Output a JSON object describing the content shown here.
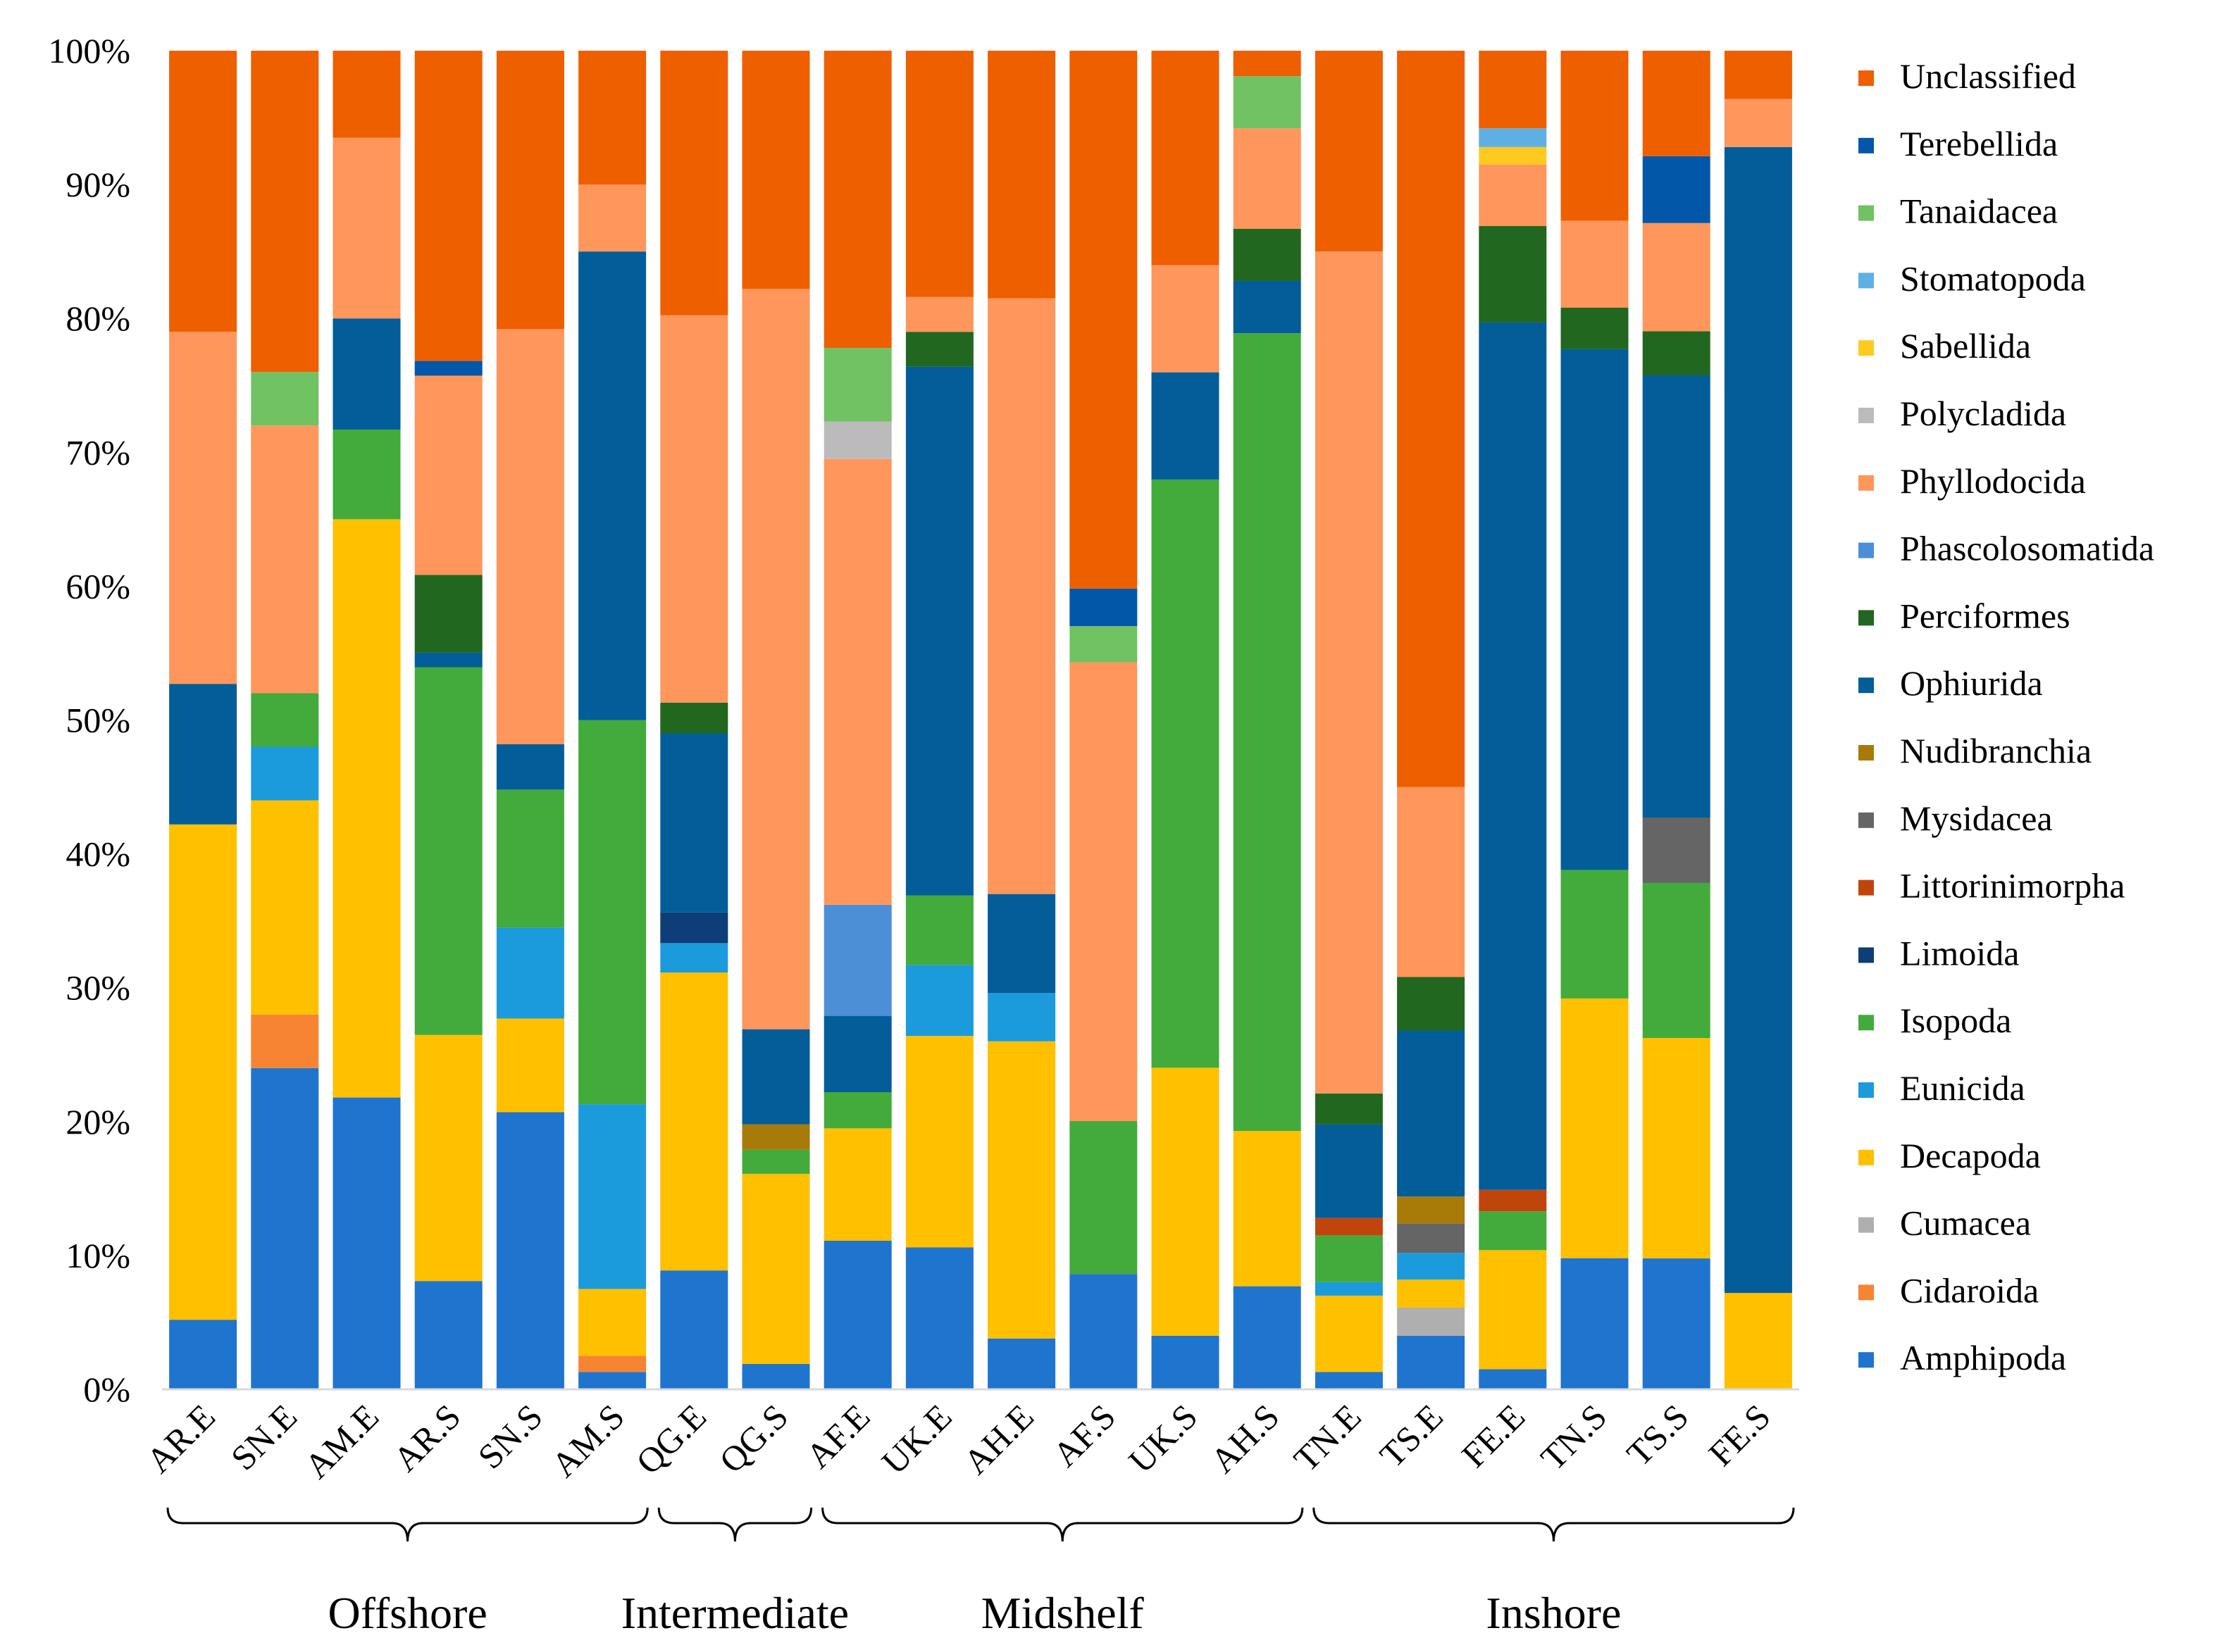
{
  "chart_data": {
    "type": "stacked-bar-100",
    "ylim": [
      0,
      100
    ],
    "yticks": [
      "0%",
      "10%",
      "20%",
      "30%",
      "40%",
      "50%",
      "60%",
      "70%",
      "80%",
      "90%",
      "100%"
    ],
    "categories": [
      "AR.E",
      "SN.E",
      "AM.E",
      "AR.S",
      "SN.S",
      "AM.S",
      "QG.E",
      "QG.S",
      "AF.E",
      "UK.E",
      "AH.E",
      "AF.S",
      "UK.S",
      "AH.S",
      "TN.E",
      "TS.E",
      "FE.E",
      "TN.S",
      "TS.S",
      "FE.S"
    ],
    "groups": [
      {
        "label": "Offshore",
        "from": 0,
        "to": 5
      },
      {
        "label": "Intermediate",
        "from": 6,
        "to": 7
      },
      {
        "label": "Midshelf",
        "from": 8,
        "to": 13
      },
      {
        "label": "Inshore",
        "from": 14,
        "to": 19
      }
    ],
    "legend_position": "right",
    "series": [
      {
        "name": "Amphipoda",
        "color": "#1F74CE",
        "values": [
          5.2,
          24,
          21.8,
          8.1,
          20.7,
          1.3,
          8.9,
          1.9,
          11.1,
          10.6,
          3.8,
          8.6,
          4,
          7.7,
          1.3,
          4,
          1.5,
          9.8,
          9.8,
          0
        ]
      },
      {
        "name": "Cidaroida",
        "color": "#F78433",
        "values": [
          0,
          4,
          0,
          0,
          0,
          1.2,
          0,
          0,
          0,
          0,
          0,
          0,
          0,
          0,
          0,
          0,
          0,
          0,
          0,
          0
        ]
      },
      {
        "name": "Cumacea",
        "color": "#AFAFAF",
        "values": [
          0,
          0,
          0,
          0,
          0,
          0,
          0,
          0,
          0,
          0,
          0,
          0,
          0,
          0,
          0,
          2.1,
          0,
          0,
          0,
          0
        ]
      },
      {
        "name": "Decapoda",
        "color": "#FFC000",
        "values": [
          37,
          16,
          43.2,
          18.4,
          7,
          5,
          22.3,
          14.2,
          8.4,
          15.8,
          22.2,
          0,
          20,
          11.6,
          5.7,
          2.1,
          8.9,
          19.4,
          16.5,
          7.2
        ]
      },
      {
        "name": "Eunicida",
        "color": "#1C9BDC",
        "values": [
          0,
          4,
          0,
          0,
          6.8,
          13.8,
          2.2,
          0,
          0,
          5.3,
          3.6,
          0,
          0,
          0,
          1,
          2,
          0,
          0,
          0,
          0
        ]
      },
      {
        "name": "Isopoda",
        "color": "#42AB3C",
        "values": [
          0,
          4,
          6.7,
          27.5,
          10.3,
          28.7,
          0,
          1.8,
          2.7,
          5.2,
          0,
          11.4,
          43.9,
          59.6,
          3.5,
          0,
          2.9,
          9.6,
          11.6,
          0
        ]
      },
      {
        "name": "Limoida",
        "color": "#0D3E78",
        "values": [
          0,
          0,
          0,
          0,
          0,
          0,
          2.3,
          0,
          0,
          0,
          0,
          0,
          0,
          0,
          0,
          0,
          0,
          0,
          0,
          0
        ]
      },
      {
        "name": "Littorinimorpha",
        "color": "#C0450C",
        "values": [
          0,
          0,
          0,
          0,
          0,
          0,
          0,
          0,
          0,
          0,
          0,
          0,
          0,
          0,
          1.3,
          0,
          1.6,
          0,
          0,
          0
        ]
      },
      {
        "name": "Mysidacea",
        "color": "#656565",
        "values": [
          0,
          0,
          0,
          0,
          0,
          0,
          0,
          0,
          0,
          0,
          0,
          0,
          0,
          0,
          0,
          2.2,
          0,
          0,
          4.9,
          0
        ]
      },
      {
        "name": "Nudibranchia",
        "color": "#A87A08",
        "values": [
          0,
          0,
          0,
          0,
          0,
          0,
          0,
          1.9,
          0,
          0,
          0,
          0,
          0,
          0,
          0,
          2,
          0,
          0,
          0,
          0
        ]
      },
      {
        "name": "Ophiurida",
        "color": "#025D99",
        "values": [
          10.5,
          0,
          8.3,
          1.1,
          3.4,
          35,
          13.4,
          7.1,
          5.7,
          39.5,
          7.4,
          0,
          8,
          3.9,
          7,
          12.4,
          64.8,
          38.9,
          33.1,
          85.6
        ]
      },
      {
        "name": "Perciformes",
        "color": "#21671F",
        "values": [
          0,
          0,
          0,
          5.8,
          0,
          0,
          2.3,
          0,
          0,
          2.6,
          0,
          0,
          0,
          3.9,
          2.3,
          4,
          7.2,
          3.1,
          3.3,
          0
        ]
      },
      {
        "name": "Phascolosomatida",
        "color": "#4D8FD6",
        "values": [
          0,
          0,
          0,
          0,
          0,
          0,
          0,
          0,
          8.3,
          0,
          0,
          0,
          0,
          0,
          0,
          0,
          0,
          0,
          0,
          0
        ]
      },
      {
        "name": "Phyllodocida",
        "color": "#FF965B",
        "values": [
          26.3,
          20,
          13.5,
          14.9,
          31,
          5,
          29,
          55.3,
          33.3,
          2.6,
          44.5,
          34.2,
          8,
          7.5,
          62.9,
          14.2,
          4.6,
          6.5,
          8.1,
          3.6
        ]
      },
      {
        "name": "Polycladida",
        "color": "#BBBBBB",
        "values": [
          0,
          0,
          0,
          0,
          0,
          0,
          0,
          0,
          2.8,
          0,
          0,
          0,
          0,
          0,
          0,
          0,
          0,
          0,
          0,
          0
        ]
      },
      {
        "name": "Sabellida",
        "color": "#FFCA1F",
        "values": [
          0,
          0,
          0,
          0,
          0,
          0,
          0,
          0,
          0,
          0,
          0,
          0,
          0,
          0,
          0,
          0,
          1.3,
          0,
          0,
          0
        ]
      },
      {
        "name": "Stomatopoda",
        "color": "#5EB0E4",
        "values": [
          0,
          0,
          0,
          0,
          0,
          0,
          0,
          0,
          0,
          0,
          0,
          0,
          0,
          0,
          0,
          0,
          1.4,
          0,
          0,
          0
        ]
      },
      {
        "name": "Tanaidacea",
        "color": "#70C262",
        "values": [
          0,
          4,
          0,
          0,
          0,
          0,
          0,
          0,
          5.5,
          0,
          0,
          2.7,
          0,
          3.9,
          0,
          0,
          0,
          0,
          0,
          0
        ]
      },
      {
        "name": "Terebellida",
        "color": "#0357A9",
        "values": [
          0,
          0,
          0,
          1.1,
          0,
          0,
          0,
          0,
          0,
          0,
          0,
          2.8,
          0,
          0,
          0,
          0,
          0,
          0,
          5,
          0
        ]
      },
      {
        "name": "Unclassified",
        "color": "#EE5F00",
        "values": [
          21,
          24,
          6.5,
          23.2,
          20.8,
          10,
          19.8,
          17.8,
          22.2,
          18.4,
          18.5,
          40.1,
          16,
          1.9,
          15,
          55,
          5.8,
          12.7,
          7.9,
          3.6
        ]
      }
    ],
    "legend": [
      "Unclassified",
      "Terebellida",
      "Tanaidacea",
      "Stomatopoda",
      "Sabellida",
      "Polycladida",
      "Phyllodocida",
      "Phascolosomatida",
      "Perciformes",
      "Ophiurida",
      "Nudibranchia",
      "Mysidacea",
      "Littorinimorpha",
      "Limoida",
      "Isopoda",
      "Eunicida",
      "Decapoda",
      "Cumacea",
      "Cidaroida",
      "Amphipoda"
    ],
    "title": "",
    "xlabel": "",
    "ylabel": ""
  }
}
